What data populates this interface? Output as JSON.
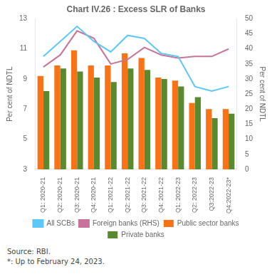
{
  "chart_data": {
    "type": "bar",
    "title": "Chart IV.26 : Excess SLR of Banks",
    "categories": [
      "Q1: 2020-21",
      "Q2: 2020-21",
      "Q3: 2020-21",
      "Q4: 2020-21",
      "Q1: 2021-22",
      "Q2: 2021-22",
      "Q3: 2021-22",
      "Q4: 2021-22",
      "Q1: 2022-23",
      "Q2: 2022-23",
      "Q3:2022-23",
      "Q4:2022-23*"
    ],
    "series": [
      {
        "name": "Public sector banks",
        "type": "bar",
        "color": "#F97316",
        "values": [
          9.2,
          9.9,
          10.9,
          9.9,
          9.9,
          10.7,
          10.4,
          9.1,
          8.9,
          7.4,
          7.0,
          7.0
        ]
      },
      {
        "name": "Private banks",
        "type": "bar",
        "color": "#5A8A2F",
        "values": [
          8.2,
          9.7,
          9.5,
          9.1,
          8.8,
          9.7,
          9.6,
          9.0,
          8.5,
          7.8,
          6.4,
          6.7
        ]
      },
      {
        "name": "All SCBs",
        "type": "line",
        "color": "#5BC8F5",
        "values": [
          10.5,
          11.5,
          12.5,
          11.5,
          10.8,
          11.9,
          11.7,
          10.7,
          10.5,
          8.5,
          8.2,
          8.5
        ]
      },
      {
        "name": "Foreign banks (RHS)",
        "type": "line",
        "axis": "y2",
        "color": "#C8749A",
        "values": [
          34.0,
          38.0,
          46.0,
          43.5,
          35.0,
          36.5,
          40.5,
          38.0,
          37.0,
          37.5,
          37.5,
          40.0
        ]
      }
    ],
    "ylabel": "Per cent of NDTL",
    "y2label": "Per cent of NDTL",
    "ylim": [
      3,
      13
    ],
    "yticks": [
      3,
      5,
      7,
      9,
      11,
      13
    ],
    "y2lim": [
      0,
      50
    ],
    "y2ticks": [
      0,
      5,
      10,
      15,
      20,
      25,
      30,
      35,
      40,
      45,
      50
    ],
    "annotations": [
      "Source: RBI.",
      "*: Up to February 24, 2023."
    ],
    "grid": false,
    "legend": "bottom"
  }
}
